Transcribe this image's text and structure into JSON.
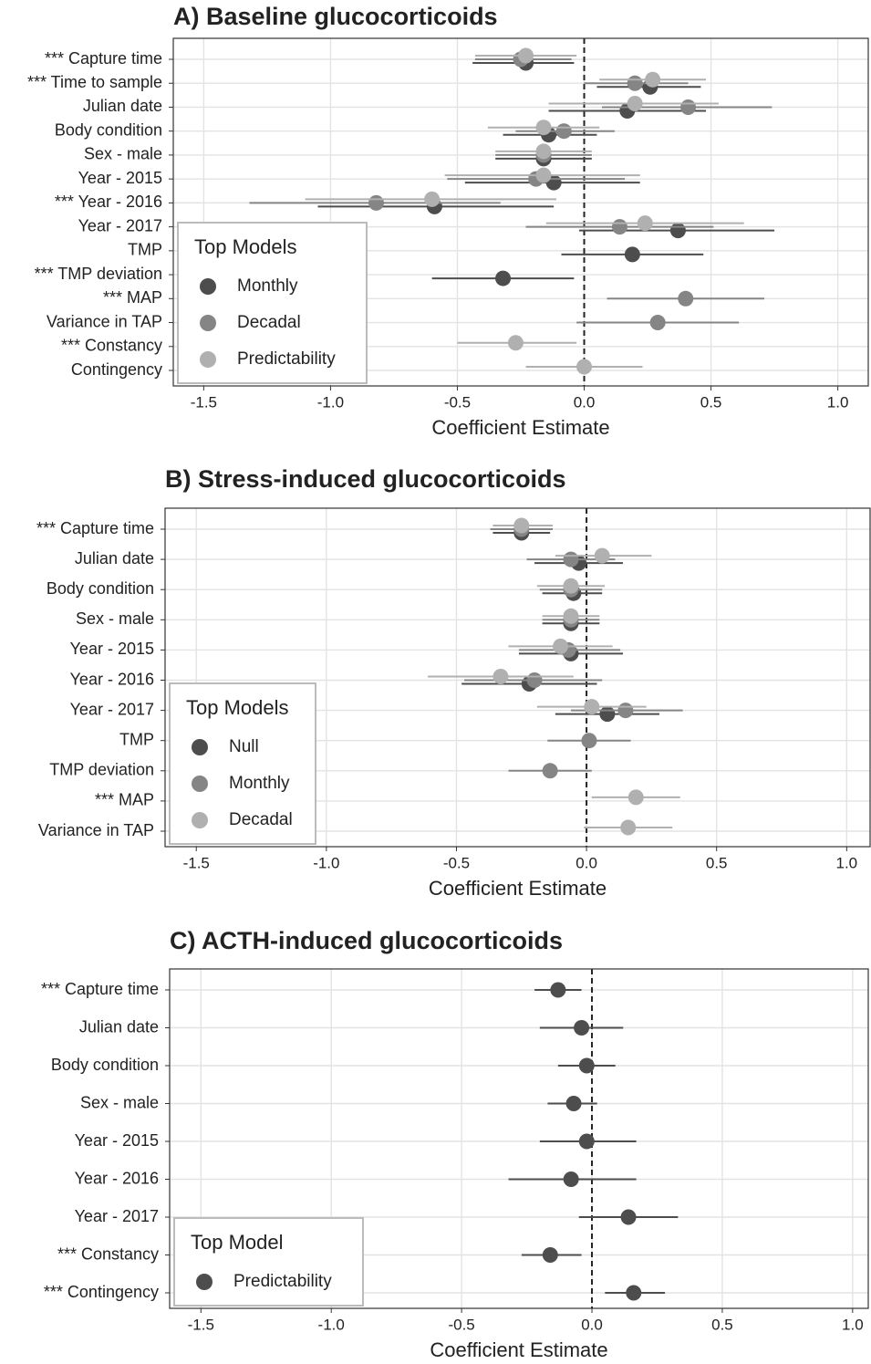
{
  "chart_data": [
    {
      "type": "forest",
      "title": "A) Baseline glucocorticoids",
      "xlabel": "Coefficient Estimate",
      "categories": [
        "*** Capture time",
        "*** Time to sample",
        "Julian date",
        "Body condition",
        "Sex - male",
        "Year - 2015",
        "*** Year - 2016",
        "Year - 2017",
        "TMP",
        "*** TMP deviation",
        "*** MAP",
        "Variance in TAP",
        "*** Constancy",
        "Contingency"
      ],
      "series": [
        {
          "name": "Monthly",
          "color": "#4d4d4d",
          "values": [
            -0.23,
            0.26,
            0.17,
            -0.14,
            -0.16,
            -0.12,
            -0.59,
            0.37,
            0.19,
            -0.32,
            null,
            null,
            null,
            null
          ],
          "lower": [
            -0.44,
            0.05,
            -0.14,
            -0.32,
            -0.35,
            -0.47,
            -1.05,
            -0.02,
            -0.09,
            -0.6,
            null,
            null,
            null,
            null
          ],
          "upper": [
            -0.04,
            0.46,
            0.48,
            0.05,
            0.03,
            0.22,
            -0.12,
            0.75,
            0.47,
            -0.04,
            null,
            null,
            null,
            null
          ]
        },
        {
          "name": "Decadal",
          "color": "#858585",
          "values": [
            -0.25,
            0.2,
            0.41,
            -0.08,
            -0.16,
            -0.19,
            -0.82,
            0.14,
            null,
            null,
            0.4,
            0.29,
            null,
            null
          ],
          "lower": [
            -0.43,
            0.0,
            0.07,
            -0.27,
            -0.35,
            -0.54,
            -1.32,
            -0.23,
            null,
            null,
            0.09,
            -0.03,
            null,
            null
          ],
          "upper": [
            -0.05,
            0.41,
            0.74,
            0.12,
            0.03,
            0.16,
            -0.33,
            0.51,
            null,
            null,
            0.71,
            0.61,
            null,
            null
          ]
        },
        {
          "name": "Predictability",
          "color": "#b0b0b0",
          "values": [
            -0.23,
            0.27,
            0.2,
            -0.16,
            -0.16,
            -0.16,
            -0.6,
            0.24,
            null,
            null,
            null,
            null,
            -0.27,
            0.0
          ],
          "lower": [
            -0.43,
            0.06,
            -0.14,
            -0.38,
            -0.35,
            -0.55,
            -1.1,
            -0.15,
            null,
            null,
            null,
            null,
            -0.5,
            -0.23
          ],
          "upper": [
            -0.03,
            0.48,
            0.53,
            0.06,
            0.03,
            0.22,
            -0.11,
            0.63,
            null,
            null,
            null,
            null,
            -0.03,
            0.23
          ]
        }
      ],
      "legend_title": "Top Models",
      "legend_position": "bottom-left",
      "reference_line": 0,
      "xlim": [
        -1.62,
        1.12
      ],
      "xticks": [
        -1.5,
        {
          "value": -1,
          "label": "-1.0"
        },
        -0.5,
        {
          "value": 0,
          "label": "0.0"
        },
        0.5,
        {
          "value": 1,
          "label": "1.0"
        }
      ],
      "grid": true
    },
    {
      "type": "forest",
      "title": "B) Stress-induced glucocorticoids",
      "xlabel": "Coefficient Estimate",
      "categories": [
        "*** Capture time",
        "Julian date",
        "Body condition",
        "Sex - male",
        "Year - 2015",
        "Year - 2016",
        "Year - 2017",
        "TMP",
        "TMP deviation",
        "*** MAP",
        "Variance in TAP"
      ],
      "series": [
        {
          "name": "Null",
          "color": "#4d4d4d",
          "values": [
            -0.25,
            -0.03,
            -0.05,
            -0.06,
            -0.06,
            -0.22,
            0.08,
            null,
            null,
            null,
            null
          ],
          "lower": [
            -0.36,
            -0.2,
            -0.17,
            -0.17,
            -0.26,
            -0.48,
            -0.12,
            null,
            null,
            null,
            null
          ],
          "upper": [
            -0.14,
            0.14,
            0.06,
            0.05,
            0.14,
            0.04,
            0.28,
            null,
            null,
            null,
            null
          ]
        },
        {
          "name": "Monthly",
          "color": "#858585",
          "values": [
            -0.25,
            -0.06,
            -0.06,
            -0.06,
            -0.07,
            -0.2,
            0.15,
            0.01,
            -0.14,
            null,
            null
          ],
          "lower": [
            -0.37,
            -0.23,
            -0.18,
            -0.17,
            -0.26,
            -0.47,
            -0.06,
            -0.15,
            -0.3,
            null,
            null
          ],
          "upper": [
            -0.13,
            0.11,
            0.06,
            0.05,
            0.13,
            0.06,
            0.37,
            0.17,
            0.02,
            null,
            null
          ]
        },
        {
          "name": "Decadal",
          "color": "#b0b0b0",
          "values": [
            -0.25,
            0.06,
            -0.06,
            -0.06,
            -0.1,
            -0.33,
            0.02,
            null,
            null,
            0.19,
            0.16
          ],
          "lower": [
            -0.36,
            -0.12,
            -0.19,
            -0.17,
            -0.3,
            -0.61,
            -0.19,
            null,
            null,
            0.02,
            -0.01
          ],
          "upper": [
            -0.13,
            0.25,
            0.07,
            0.05,
            0.1,
            -0.05,
            0.23,
            null,
            null,
            0.36,
            0.33
          ]
        }
      ],
      "legend_title": "Top Models",
      "legend_position": "bottom-left",
      "reference_line": 0,
      "xlim": [
        -1.62,
        1.09
      ],
      "xticks": [
        -1.5,
        {
          "value": -1,
          "label": "-1.0"
        },
        -0.5,
        {
          "value": 0,
          "label": "0.0"
        },
        0.5,
        {
          "value": 1,
          "label": "1.0"
        }
      ],
      "grid": true
    },
    {
      "type": "forest",
      "title": "C) ACTH-induced glucocorticoids",
      "xlabel": "Coefficient Estimate",
      "categories": [
        "*** Capture time",
        "Julian date",
        "Body condition",
        "Sex - male",
        "Year - 2015",
        "Year - 2016",
        "Year - 2017",
        "*** Constancy",
        "*** Contingency"
      ],
      "series": [
        {
          "name": "Predictability",
          "color": "#4d4d4d",
          "values": [
            -0.13,
            -0.04,
            -0.02,
            -0.07,
            -0.02,
            -0.08,
            0.14,
            -0.16,
            0.16
          ],
          "lower": [
            -0.22,
            -0.2,
            -0.13,
            -0.17,
            -0.2,
            -0.32,
            -0.05,
            -0.27,
            0.05
          ],
          "upper": [
            -0.04,
            0.12,
            0.09,
            0.02,
            0.17,
            0.17,
            0.33,
            -0.04,
            0.28
          ]
        }
      ],
      "legend_title": "Top Model",
      "legend_position": "bottom-left",
      "reference_line": 0,
      "xlim": [
        -1.62,
        1.06
      ],
      "xticks": [
        -1.5,
        {
          "value": -1,
          "label": "-1.0"
        },
        -0.5,
        {
          "value": 0,
          "label": "0.0"
        },
        0.5,
        {
          "value": 1,
          "label": "1.0"
        }
      ],
      "grid": true
    }
  ]
}
